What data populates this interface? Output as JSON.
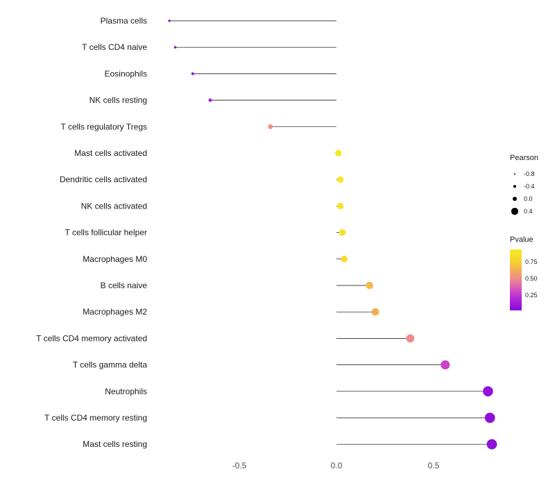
{
  "figure": {
    "background": "#ffffff"
  },
  "chart_data": {
    "type": "lollipop",
    "title": "",
    "xlabel": "",
    "ylabel": "",
    "xticks": [
      "-0.5",
      "0.0",
      "0.5"
    ],
    "xtick_values": [
      -0.5,
      0.0,
      0.5
    ],
    "xlim": [
      -0.93,
      0.88
    ],
    "baseline": 0.0,
    "categories": [
      "Plasma cells",
      "T cells CD4 naive",
      "Eosinophils",
      "NK cells resting",
      "T cells regulatory Tregs",
      "Mast cells activated",
      "Dendritic cells activated",
      "NK cells activated",
      "T cells follicular helper",
      "Macrophages M0",
      "B cells naive",
      "Macrophages M2",
      "T cells CD4 memory activated",
      "T cells gamma delta",
      "Neutrophils",
      "T cells CD4 memory resting",
      "Mast cells resting"
    ],
    "series": [
      {
        "name": "Pearson",
        "values": [
          -0.86,
          -0.83,
          -0.74,
          -0.65,
          -0.34,
          0.01,
          0.02,
          0.02,
          0.03,
          0.04,
          0.17,
          0.2,
          0.38,
          0.56,
          0.78,
          0.79,
          0.8
        ]
      },
      {
        "name": "Pvalue",
        "values": [
          0.05,
          0.07,
          0.12,
          0.15,
          0.52,
          0.93,
          0.91,
          0.9,
          0.88,
          0.84,
          0.68,
          0.63,
          0.5,
          0.3,
          0.06,
          0.05,
          0.04
        ]
      }
    ],
    "legend": {
      "pearson_title": "Pearson",
      "pearson_size_ticks": [
        "-0.8",
        "-0.4",
        "0.0",
        "0.4"
      ],
      "pearson_size_values": [
        -0.8,
        -0.4,
        0.0,
        0.4
      ],
      "pvalue_title": "Pvalue",
      "pvalue_ticks": [
        "0.75",
        "0.50",
        "0.25"
      ],
      "pvalue_tick_values": [
        0.75,
        0.5,
        0.25
      ]
    },
    "colors": {
      "stem": "#000000",
      "axis_text": "#4d4d4d",
      "label_text": "#1a1a1a",
      "pvalue_high": "#f7ef23",
      "pvalue_mid": "#cc44c8",
      "pvalue_low": "#860ad6"
    }
  }
}
